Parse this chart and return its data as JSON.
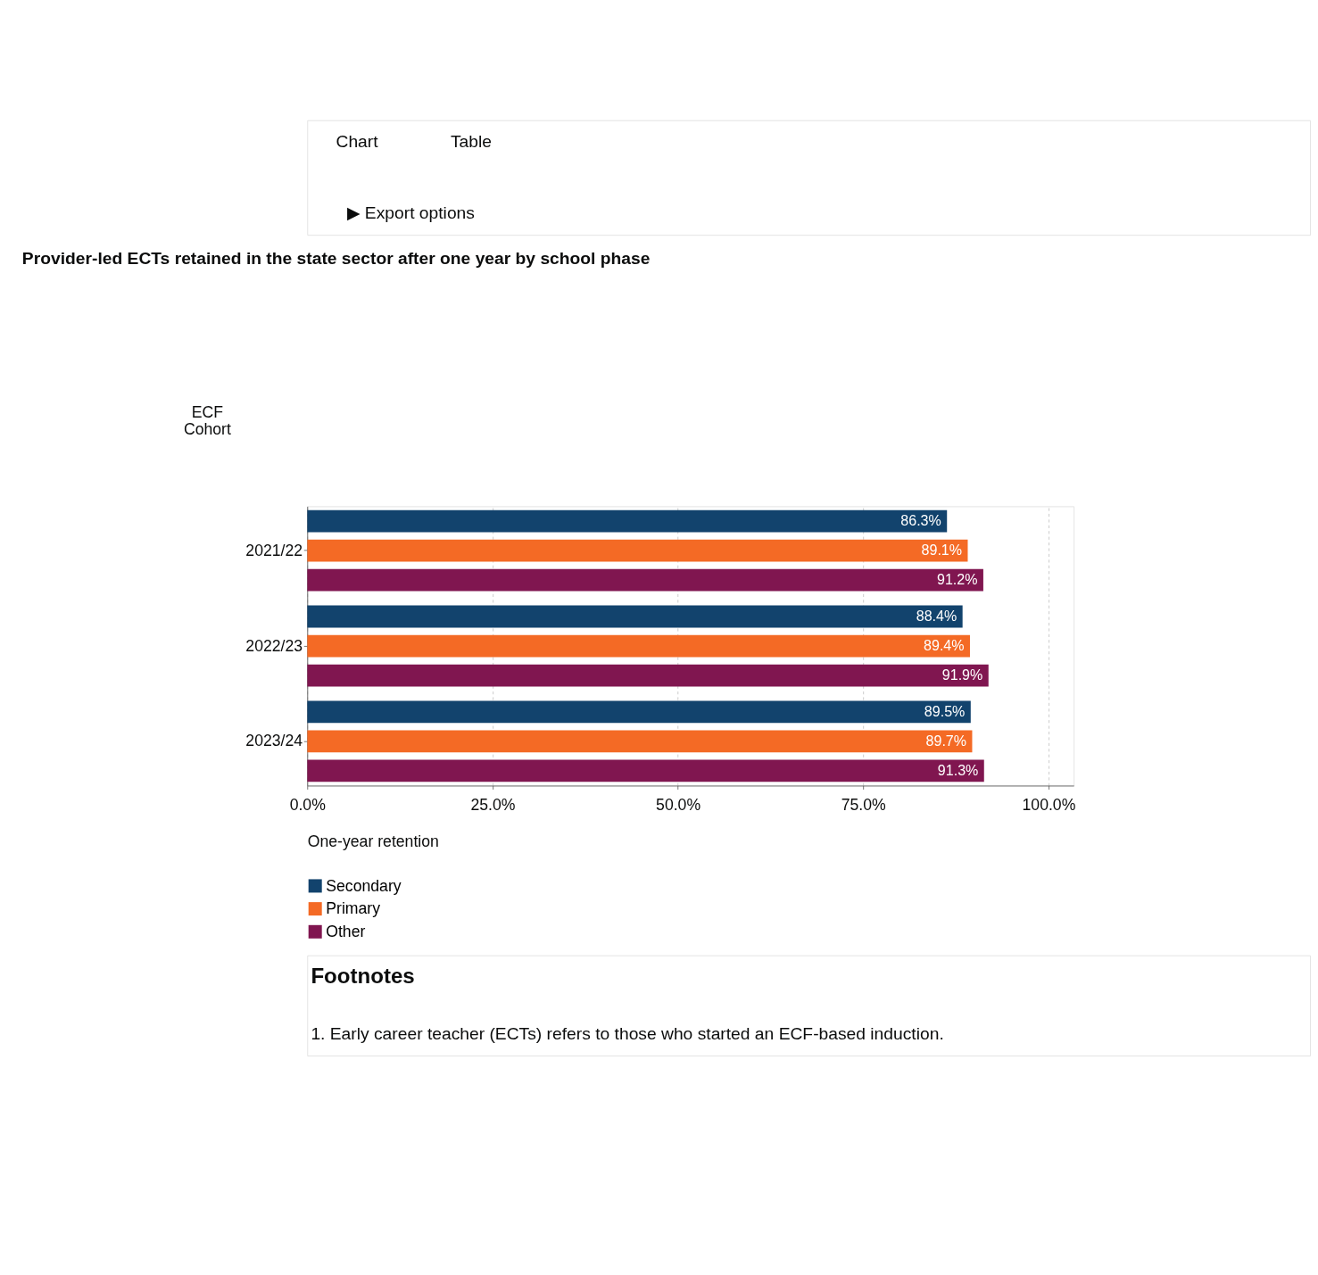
{
  "chart_data": {
    "type": "bar",
    "orientation": "horizontal",
    "title": "Provider-led ECTs retained in the state sector after one year by school phase",
    "ylabel": "ECF Cohort",
    "xlabel": "One-year retention",
    "categories": [
      "2021/22",
      "2022/23",
      "2023/24"
    ],
    "series": [
      {
        "name": "Secondary",
        "color": "#12436d",
        "values": [
          86.3,
          88.4,
          89.5
        ],
        "value_labels": [
          "86.3%",
          "88.4%",
          "89.5%"
        ]
      },
      {
        "name": "Primary",
        "color": "#f46a25",
        "values": [
          89.1,
          89.4,
          89.7
        ],
        "value_labels": [
          "89.1%",
          "89.4%",
          "89.7%"
        ]
      },
      {
        "name": "Other",
        "color": "#801650",
        "values": [
          91.2,
          91.9,
          91.3
        ],
        "value_labels": [
          "91.2%",
          "91.9%",
          "91.3%"
        ]
      }
    ],
    "xlim": [
      0,
      103.4
    ],
    "xticks": [
      {
        "value": 0,
        "label": "0.0%"
      },
      {
        "value": 25,
        "label": "25.0%"
      },
      {
        "value": 50,
        "label": "50.0%"
      },
      {
        "value": 75,
        "label": "75.0%"
      },
      {
        "value": 100,
        "label": "100.0%"
      }
    ],
    "grid": "x",
    "legend": "bottom left",
    "annotations": [
      "Chart",
      "Table",
      "▶ Export options",
      "Footnotes",
      "1.  Early career teacher (ECTs) refers to those who started an ECF-based induction."
    ]
  }
}
